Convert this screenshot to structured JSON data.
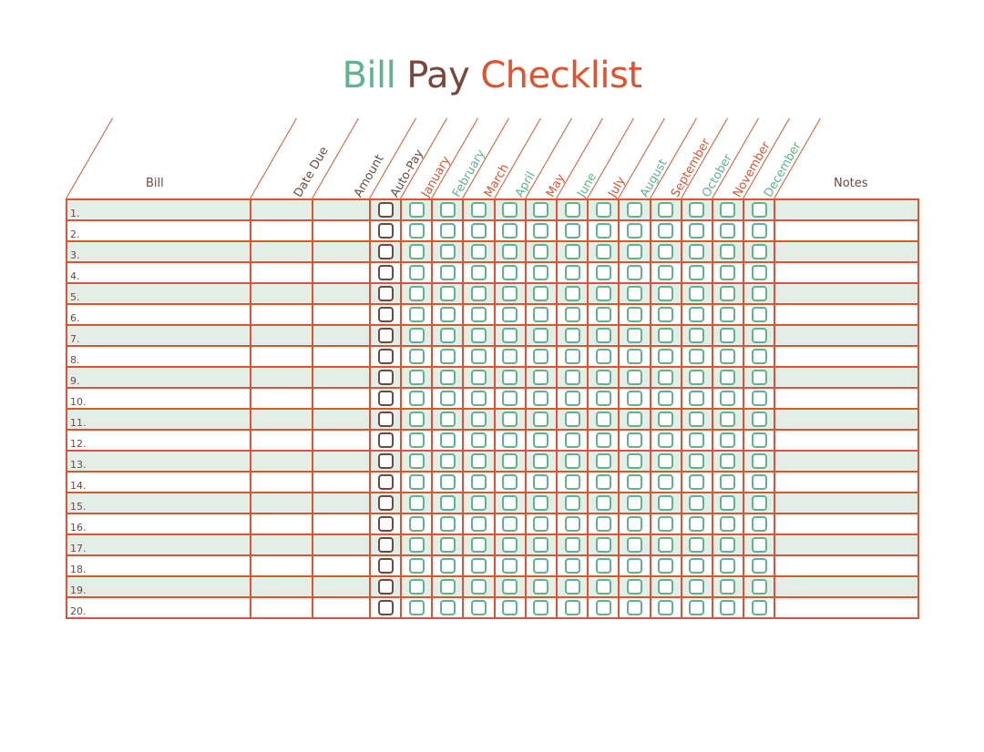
{
  "title": {
    "word1": "Bill",
    "word2": "Pay",
    "word3": "Checklist"
  },
  "headers": {
    "bill": "Bill",
    "date_due": "Date Due",
    "amount": "Amount",
    "auto_pay": "Auto-Pay",
    "notes": "Notes"
  },
  "months": [
    "January",
    "February",
    "March",
    "April",
    "May",
    "June",
    "July",
    "August",
    "September",
    "October",
    "November",
    "December"
  ],
  "month_colors": [
    "#e0532f",
    "#5db48e",
    "#e0532f",
    "#5db48e",
    "#e0532f",
    "#5db48e",
    "#e0532f",
    "#5db48e",
    "#e0532f",
    "#5db48e",
    "#e0532f",
    "#5db48e"
  ],
  "rows": [
    "1.",
    "2.",
    "3.",
    "4.",
    "5.",
    "6.",
    "7.",
    "8.",
    "9.",
    "10.",
    "11.",
    "12.",
    "13.",
    "14.",
    "15.",
    "16.",
    "17.",
    "18.",
    "19.",
    "20."
  ],
  "colors": {
    "accent_green": "#5db48e",
    "brown": "#7a463d",
    "red": "#e0532f",
    "row_shade": "#e4eee8"
  }
}
